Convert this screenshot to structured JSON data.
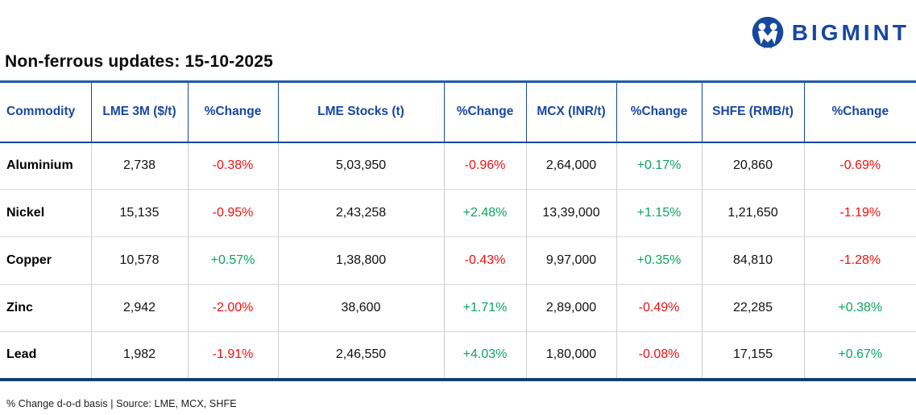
{
  "brand": {
    "name": "BIGMINT"
  },
  "page": {
    "title": "Non-ferrous updates: 15-10-2025",
    "footnote": "% Change d-o-d basis | Source: LME, MCX, SHFE"
  },
  "colors": {
    "navy": "#17479E",
    "positive": "#0CA45F",
    "negative": "#F40E0E",
    "top_border": "#1F5BA8",
    "bottom_border": "#123E75"
  },
  "table": {
    "columns": [
      {
        "key": "commodity",
        "label": "Commodity",
        "type": "name"
      },
      {
        "key": "lme_3m",
        "label": "LME 3M ($/t)",
        "type": "value"
      },
      {
        "key": "lme_3m_change",
        "label": "%Change",
        "type": "change"
      },
      {
        "key": "lme_stocks",
        "label": "LME Stocks (t)",
        "type": "value"
      },
      {
        "key": "lme_stocks_change",
        "label": "%Change",
        "type": "change"
      },
      {
        "key": "mcx",
        "label": "MCX (INR/t)",
        "type": "value"
      },
      {
        "key": "mcx_change",
        "label": "%Change",
        "type": "change"
      },
      {
        "key": "shfe",
        "label": "SHFE (RMB/t)",
        "type": "value"
      },
      {
        "key": "shfe_change",
        "label": "%Change",
        "type": "change"
      }
    ],
    "rows": [
      {
        "commodity": "Aluminium",
        "lme_3m": "2,738",
        "lme_3m_change": "-0.38%",
        "lme_stocks": "5,03,950",
        "lme_stocks_change": "-0.96%",
        "mcx": "2,64,000",
        "mcx_change": "+0.17%",
        "shfe": "20,860",
        "shfe_change": "-0.69%"
      },
      {
        "commodity": "Nickel",
        "lme_3m": "15,135",
        "lme_3m_change": "-0.95%",
        "lme_stocks": "2,43,258",
        "lme_stocks_change": "+2.48%",
        "mcx": "13,39,000",
        "mcx_change": "+1.15%",
        "shfe": "1,21,650",
        "shfe_change": "-1.19%"
      },
      {
        "commodity": "Copper",
        "lme_3m": "10,578",
        "lme_3m_change": "+0.57%",
        "lme_stocks": "1,38,800",
        "lme_stocks_change": "-0.43%",
        "mcx": "9,97,000",
        "mcx_change": "+0.35%",
        "shfe": "84,810",
        "shfe_change": "-1.28%"
      },
      {
        "commodity": "Zinc",
        "lme_3m": "2,942",
        "lme_3m_change": "-2.00%",
        "lme_stocks": "38,600",
        "lme_stocks_change": "+1.71%",
        "mcx": "2,89,000",
        "mcx_change": "-0.49%",
        "shfe": "22,285",
        "shfe_change": "+0.38%"
      },
      {
        "commodity": "Lead",
        "lme_3m": "1,982",
        "lme_3m_change": "-1.91%",
        "lme_stocks": "2,46,550",
        "lme_stocks_change": "+4.03%",
        "mcx": "1,80,000",
        "mcx_change": "-0.08%",
        "shfe": "17,155",
        "shfe_change": "+0.67%"
      }
    ]
  },
  "chart_data": {
    "type": "table",
    "title": "Non-ferrous updates: 15-10-2025",
    "columns": [
      "Commodity",
      "LME 3M ($/t)",
      "%Change",
      "LME Stocks (t)",
      "%Change",
      "MCX (INR/t)",
      "%Change",
      "SHFE (RMB/t)",
      "%Change"
    ],
    "rows": [
      [
        "Aluminium",
        "2,738",
        "-0.38%",
        "5,03,950",
        "-0.96%",
        "2,64,000",
        "+0.17%",
        "20,860",
        "-0.69%"
      ],
      [
        "Nickel",
        "15,135",
        "-0.95%",
        "2,43,258",
        "+2.48%",
        "13,39,000",
        "+1.15%",
        "1,21,650",
        "-1.19%"
      ],
      [
        "Copper",
        "10,578",
        "+0.57%",
        "1,38,800",
        "-0.43%",
        "9,97,000",
        "+0.35%",
        "84,810",
        "-1.28%"
      ],
      [
        "Zinc",
        "2,942",
        "-2.00%",
        "38,600",
        "+1.71%",
        "2,89,000",
        "-0.49%",
        "22,285",
        "+0.38%"
      ],
      [
        "Lead",
        "1,982",
        "-1.91%",
        "2,46,550",
        "+4.03%",
        "1,80,000",
        "-0.08%",
        "17,155",
        "+0.67%"
      ]
    ],
    "footnote": "% Change d-o-d basis | Source: LME, MCX, SHFE",
    "positive_color": "#0CA45F",
    "negative_color": "#F40E0E"
  }
}
